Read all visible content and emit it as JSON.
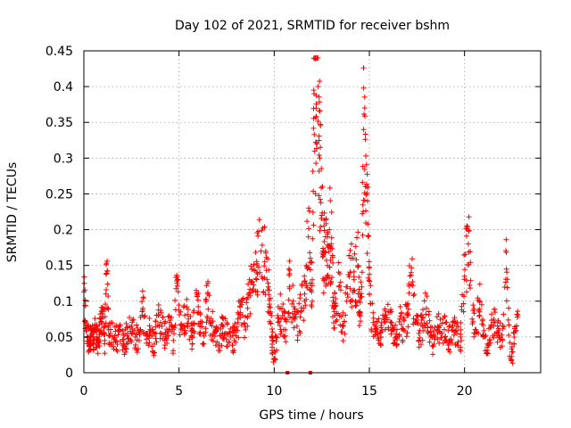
{
  "chart_data": {
    "type": "scatter",
    "title": "Day 102 of 2021, SRMTID for receiver bshm",
    "xlabel": "GPS time / hours",
    "ylabel": "SRMTID / TECUs",
    "xlim": [
      0,
      24
    ],
    "ylim": [
      0,
      0.45
    ],
    "x_ticks": [
      0,
      5,
      10,
      15,
      20
    ],
    "x_tick_labels": [
      "0",
      "5",
      "10",
      "15",
      "20"
    ],
    "y_ticks": [
      0,
      0.05,
      0.1,
      0.15,
      0.2,
      0.25,
      0.3,
      0.35,
      0.4,
      0.45
    ],
    "y_tick_labels": [
      "0",
      "0.05",
      "0.1",
      "0.15",
      "0.2",
      "0.25",
      "0.3",
      "0.35",
      "0.4",
      "0.45"
    ],
    "grid": true,
    "marker": "plus",
    "color": "#ff0000",
    "series": [
      {
        "name": "SRMTID",
        "x": [
          0.0,
          0.1,
          0.2,
          0.3,
          0.4,
          0.5,
          0.6,
          0.7,
          0.8,
          0.9,
          1.0,
          1.1,
          1.2,
          1.3,
          1.5,
          1.7,
          1.9,
          2.1,
          2.3,
          2.5,
          2.7,
          2.9,
          3.1,
          3.3,
          3.5,
          3.7,
          3.9,
          4.1,
          4.3,
          4.5,
          4.7,
          4.9,
          5.1,
          5.3,
          5.5,
          5.7,
          5.9,
          6.1,
          6.3,
          6.5,
          6.7,
          6.9,
          7.1,
          7.3,
          7.5,
          7.7,
          7.9,
          8.1,
          8.3,
          8.5,
          8.7,
          8.9,
          9.1,
          9.3,
          9.5,
          9.7,
          9.8,
          9.9,
          10.0,
          10.2,
          10.4,
          10.6,
          10.8,
          11.0,
          11.2,
          11.4,
          11.6,
          11.8,
          11.9,
          12.0,
          12.1,
          12.2,
          12.3,
          12.4,
          12.5,
          12.6,
          12.7,
          12.8,
          12.9,
          13.0,
          13.1,
          13.2,
          13.4,
          13.6,
          13.8,
          14.0,
          14.2,
          14.4,
          14.5,
          14.6,
          14.7,
          14.8,
          14.9,
          15.0,
          15.2,
          15.4,
          15.6,
          15.8,
          16.0,
          16.2,
          16.4,
          16.6,
          16.8,
          17.0,
          17.2,
          17.4,
          17.6,
          17.8,
          18.0,
          18.2,
          18.4,
          18.6,
          18.8,
          19.0,
          19.2,
          19.4,
          19.6,
          19.8,
          20.0,
          20.2,
          20.4,
          20.6,
          20.8,
          21.0,
          21.2,
          21.4,
          21.6,
          21.8,
          22.0,
          22.2,
          22.4,
          22.6,
          22.8
        ],
        "y": [
          0.113,
          0.07,
          0.05,
          0.045,
          0.055,
          0.04,
          0.06,
          0.045,
          0.05,
          0.07,
          0.085,
          0.045,
          0.139,
          0.06,
          0.05,
          0.045,
          0.06,
          0.04,
          0.055,
          0.065,
          0.05,
          0.045,
          0.09,
          0.055,
          0.06,
          0.04,
          0.08,
          0.065,
          0.05,
          0.07,
          0.045,
          0.125,
          0.06,
          0.08,
          0.075,
          0.05,
          0.115,
          0.065,
          0.055,
          0.11,
          0.07,
          0.06,
          0.04,
          0.065,
          0.055,
          0.05,
          0.045,
          0.07,
          0.095,
          0.06,
          0.13,
          0.115,
          0.15,
          0.17,
          0.155,
          0.12,
          0.085,
          0.045,
          0.02,
          0.07,
          0.09,
          0.06,
          0.12,
          0.1,
          0.065,
          0.085,
          0.11,
          0.19,
          0.16,
          0.13,
          0.39,
          0.37,
          0.4,
          0.3,
          0.22,
          0.17,
          0.19,
          0.15,
          0.2,
          0.18,
          0.1,
          0.08,
          0.12,
          0.065,
          0.1,
          0.14,
          0.13,
          0.15,
          0.08,
          0.12,
          0.34,
          0.26,
          0.24,
          0.11,
          0.07,
          0.06,
          0.05,
          0.07,
          0.085,
          0.06,
          0.05,
          0.075,
          0.06,
          0.08,
          0.14,
          0.07,
          0.055,
          0.065,
          0.09,
          0.05,
          0.04,
          0.065,
          0.055,
          0.07,
          0.045,
          0.06,
          0.055,
          0.05,
          0.135,
          0.18,
          0.075,
          0.06,
          0.1,
          0.05,
          0.04,
          0.065,
          0.07,
          0.055,
          0.045,
          0.145,
          0.02,
          0.04,
          0.08
        ]
      }
    ],
    "zero_markers_x": [
      10.7,
      11.9
    ]
  }
}
